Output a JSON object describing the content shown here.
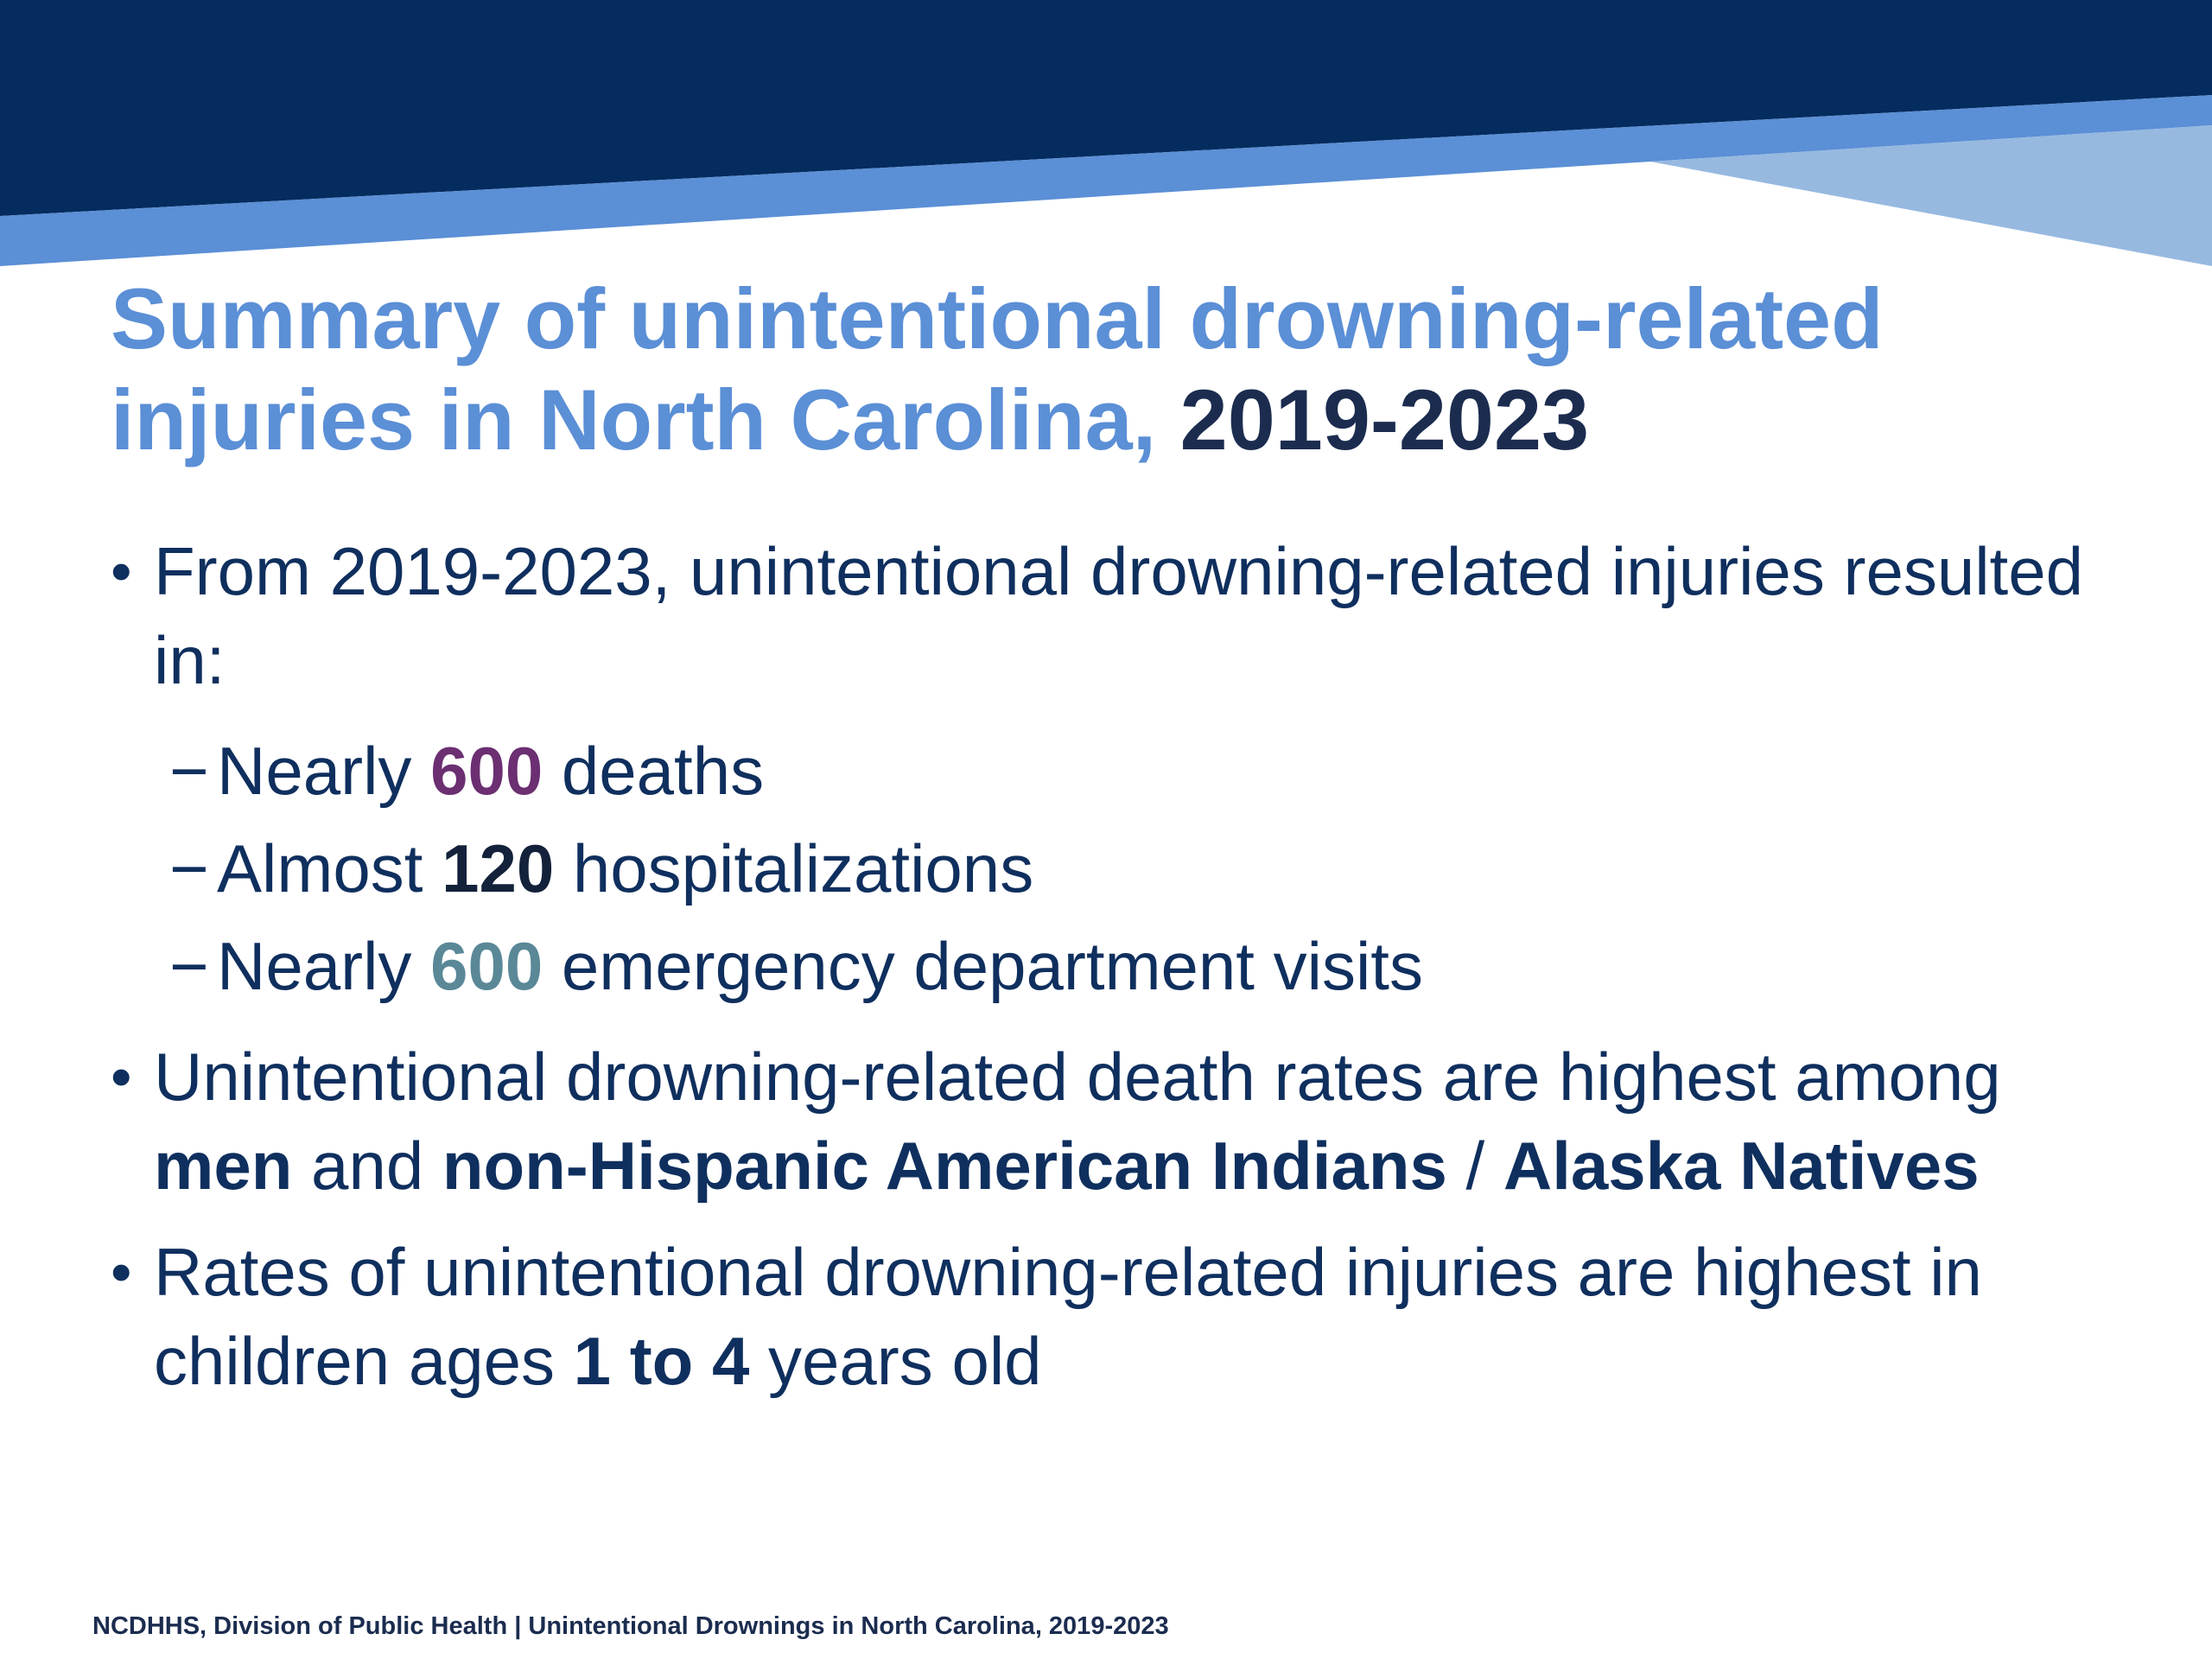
{
  "slide": {
    "title": {
      "main": "Summary of unintentional drowning-related injuries in North Carolina,",
      "year": "2019-2023"
    },
    "bullets": [
      {
        "marker": "•",
        "text": "From 2019-2023, unintentional drowning-related injuries resulted in:",
        "sub_items": [
          {
            "marker": "−",
            "prefix": "Nearly ",
            "value": "600",
            "suffix": " deaths"
          },
          {
            "marker": "−",
            "prefix": "Almost ",
            "value": "120",
            "suffix": " hospitalizations"
          },
          {
            "marker": "−",
            "prefix": "Nearly ",
            "value": "600",
            "suffix": " emergency department visits"
          }
        ]
      },
      {
        "marker": "•",
        "part1": "Unintentional drowning-related death rates are highest among ",
        "bold1": "men",
        "part2": " and ",
        "bold2": "non-Hispanic American Indians",
        "part3": " / ",
        "bold3": "Alaska Natives"
      },
      {
        "marker": "•",
        "part1": "Rates of unintentional drowning-related injuries are highest in children ages ",
        "bold1": "1 to 4",
        "part2": " years old"
      }
    ],
    "footer": "NCDHHS, Division of Public Health | Unintentional Drownings in North Carolina, 2019-2023"
  },
  "colors": {
    "banner_dark": "#042c5e",
    "banner_mid": "#5b8fd6",
    "banner_light": "#97b9e0",
    "title_blue": "#5b8fd6",
    "title_year": "#1b2c4f",
    "body_text": "#0f2f5e",
    "deaths_value": "#6b2f72",
    "ed_value": "#5a8897"
  }
}
